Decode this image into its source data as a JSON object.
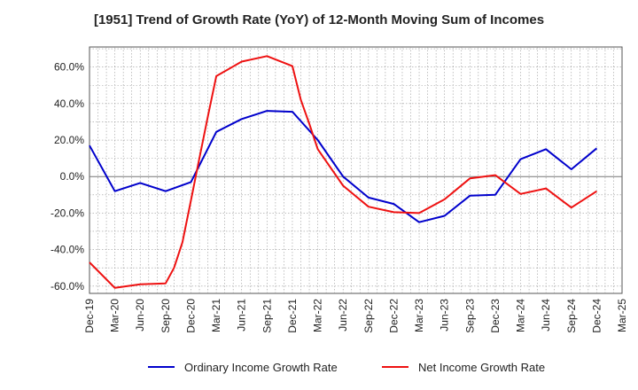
{
  "chart_data": {
    "type": "line",
    "title": "[1951]  Trend of Growth Rate (YoY) of 12-Month Moving Sum of Incomes",
    "xlabel": "",
    "ylabel": "",
    "x": [
      "Dec-19",
      "Jan-20",
      "Feb-20",
      "Mar-20",
      "Apr-20",
      "May-20",
      "Jun-20",
      "Jul-20",
      "Aug-20",
      "Sep-20",
      "Oct-20",
      "Nov-20",
      "Dec-20",
      "Jan-21",
      "Feb-21",
      "Mar-21",
      "Apr-21",
      "May-21",
      "Jun-21",
      "Jul-21",
      "Aug-21",
      "Sep-21",
      "Oct-21",
      "Nov-21",
      "Dec-21",
      "Jan-22",
      "Feb-22",
      "Mar-22",
      "Apr-22",
      "May-22",
      "Jun-22",
      "Jul-22",
      "Aug-22",
      "Sep-22",
      "Oct-22",
      "Nov-22",
      "Dec-22",
      "Jan-23",
      "Feb-23",
      "Mar-23",
      "Apr-23",
      "May-23",
      "Jun-23",
      "Jul-23",
      "Aug-23",
      "Sep-23",
      "Oct-23",
      "Nov-23",
      "Dec-23",
      "Jan-24",
      "Feb-24",
      "Mar-24",
      "Apr-24",
      "May-24",
      "Jun-24",
      "Jul-24",
      "Aug-24",
      "Sep-24",
      "Oct-24",
      "Nov-24",
      "Dec-24",
      "Jan-25",
      "Feb-25",
      "Mar-25"
    ],
    "tick_labels": [
      "Dec-19",
      "Mar-20",
      "Jun-20",
      "Sep-20",
      "Dec-20",
      "Mar-21",
      "Jun-21",
      "Sep-21",
      "Dec-21",
      "Mar-22",
      "Jun-22",
      "Sep-22",
      "Dec-22",
      "Mar-23",
      "Jun-23",
      "Sep-23",
      "Dec-23",
      "Mar-24",
      "Jun-24",
      "Sep-24",
      "Dec-24",
      "Mar-25"
    ],
    "y_tick_labels": [
      "-60.0%",
      "-40.0%",
      "-20.0%",
      "0.0%",
      "20.0%",
      "40.0%",
      "60.0%"
    ],
    "y_ticks": [
      -60,
      -40,
      -20,
      0,
      20,
      40,
      60
    ],
    "ylim": [
      -64,
      71
    ],
    "grid": true,
    "legend": "bottom",
    "series": [
      {
        "name": "Ordinary Income Growth Rate",
        "color": "#0000cc",
        "points": [
          [
            "Dec-19",
            17
          ],
          [
            "Mar-20",
            -8
          ],
          [
            "Jun-20",
            -3.5
          ],
          [
            "Sep-20",
            -8
          ],
          [
            "Dec-20",
            -3
          ],
          [
            "Mar-21",
            24.5
          ],
          [
            "Jun-21",
            31.5
          ],
          [
            "Sep-21",
            36
          ],
          [
            "Dec-21",
            35.5
          ],
          [
            "Mar-22",
            20
          ],
          [
            "Jun-22",
            0
          ],
          [
            "Sep-22",
            -11.5
          ],
          [
            "Dec-22",
            -15
          ],
          [
            "Mar-23",
            -25
          ],
          [
            "Jun-23",
            -21.5
          ],
          [
            "Sep-23",
            -10.5
          ],
          [
            "Dec-23",
            -10
          ],
          [
            "Mar-24",
            9.5
          ],
          [
            "Jun-24",
            15
          ],
          [
            "Sep-24",
            4
          ],
          [
            "Dec-24",
            15.5
          ]
        ]
      },
      {
        "name": "Net Income Growth Rate",
        "color": "#ee1111",
        "points": [
          [
            "Dec-19",
            -47
          ],
          [
            "Mar-20",
            -61
          ],
          [
            "Jun-20",
            -59
          ],
          [
            "Sep-20",
            -58.5
          ],
          [
            "Oct-20",
            -50
          ],
          [
            "Nov-20",
            -36
          ],
          [
            "Dec-20",
            -13
          ],
          [
            "Jan-21",
            10
          ],
          [
            "Feb-21",
            33
          ],
          [
            "Mar-21",
            55
          ],
          [
            "Jun-21",
            63
          ],
          [
            "Sep-21",
            66
          ],
          [
            "Dec-21",
            60.5
          ],
          [
            "Jan-22",
            42
          ],
          [
            "Feb-22",
            29
          ],
          [
            "Mar-22",
            15
          ],
          [
            "Jun-22",
            -5
          ],
          [
            "Sep-22",
            -16.5
          ],
          [
            "Dec-22",
            -19.5
          ],
          [
            "Mar-23",
            -20
          ],
          [
            "Jun-23",
            -12.5
          ],
          [
            "Sep-23",
            -1
          ],
          [
            "Dec-23",
            0.8
          ],
          [
            "Mar-24",
            -9.5
          ],
          [
            "Jun-24",
            -6.5
          ],
          [
            "Sep-24",
            -17
          ],
          [
            "Dec-24",
            -8
          ]
        ]
      }
    ]
  }
}
